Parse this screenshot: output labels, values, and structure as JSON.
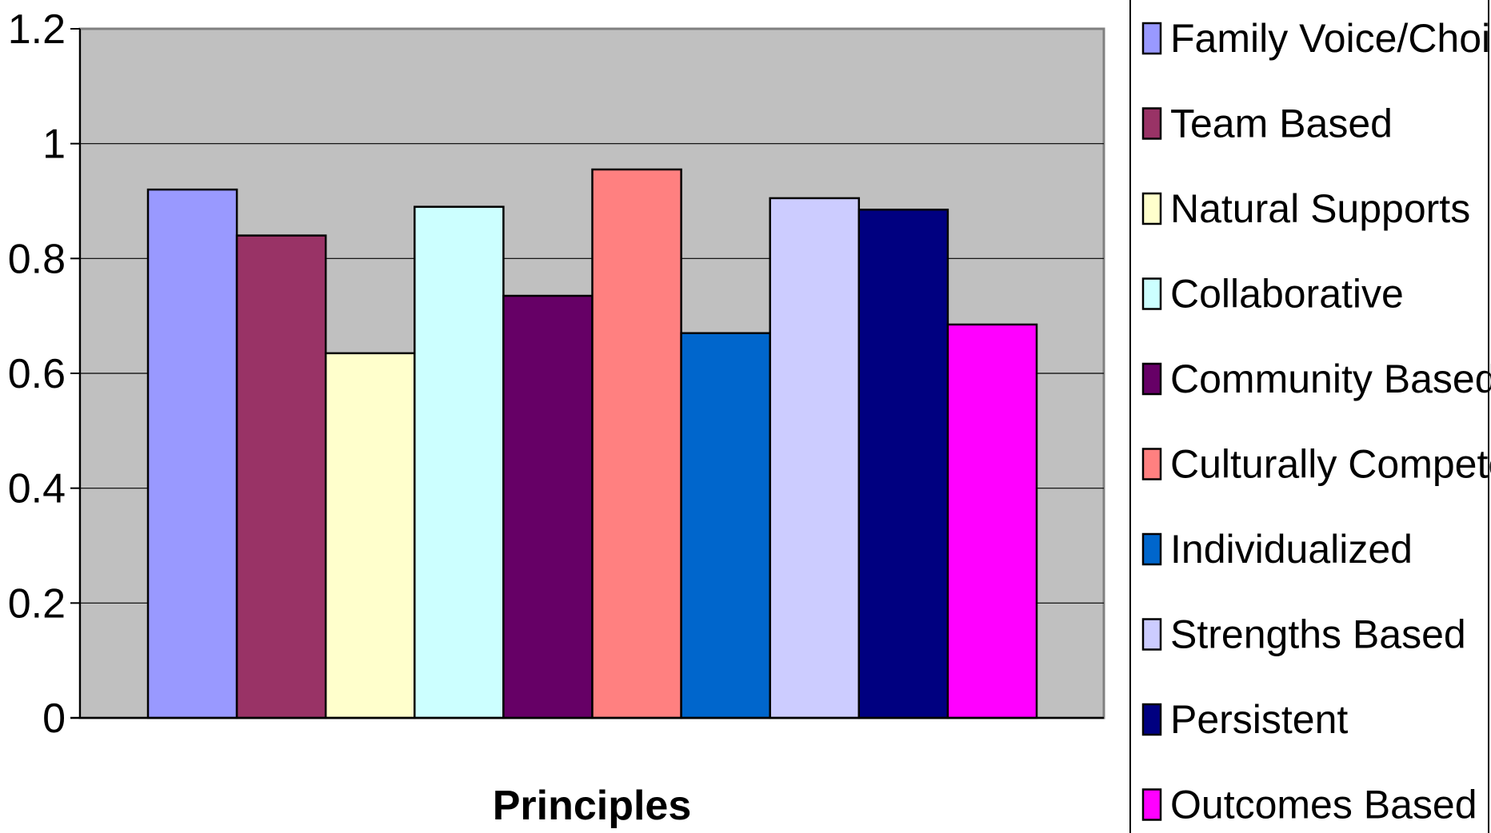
{
  "chart_data": {
    "type": "bar",
    "title": "",
    "xlabel": "Principles",
    "ylabel": "",
    "ylim": [
      0,
      1.2
    ],
    "yticks": [
      "0",
      "0.2",
      "0.4",
      "0.6",
      "0.8",
      "1",
      "1.2"
    ],
    "grid": true,
    "legend_position": "right",
    "plot_background": "#c0c0c0",
    "series": [
      {
        "name": "Family Voice/Choice",
        "value": 0.92,
        "color": "#9999ff"
      },
      {
        "name": "Team Based",
        "value": 0.84,
        "color": "#993366"
      },
      {
        "name": "Natural Supports",
        "value": 0.635,
        "color": "#ffffcc"
      },
      {
        "name": "Collaborative",
        "value": 0.89,
        "color": "#ccffff"
      },
      {
        "name": "Community Based",
        "value": 0.735,
        "color": "#660066"
      },
      {
        "name": "Culturally Competent",
        "value": 0.955,
        "color": "#ff8080"
      },
      {
        "name": "Individualized",
        "value": 0.67,
        "color": "#0066cc"
      },
      {
        "name": "Strengths Based",
        "value": 0.905,
        "color": "#ccccff"
      },
      {
        "name": "Persistent",
        "value": 0.885,
        "color": "#000080"
      },
      {
        "name": "Outcomes Based",
        "value": 0.685,
        "color": "#ff00ff"
      }
    ]
  }
}
